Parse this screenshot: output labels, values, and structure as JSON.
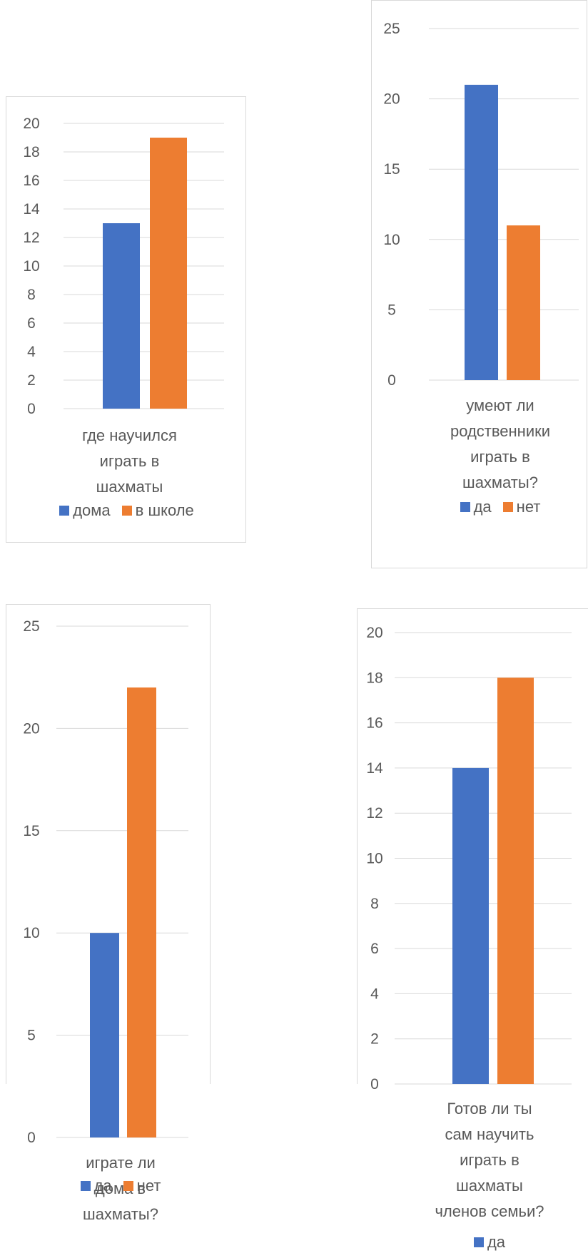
{
  "chart_data": [
    {
      "type": "bar",
      "categories": [
        "где научился играть в шахматы"
      ],
      "series": [
        {
          "name": "дома",
          "values": [
            13
          ],
          "color": "#4472C4"
        },
        {
          "name": "в школе",
          "values": [
            19
          ],
          "color": "#ED7D31"
        }
      ],
      "ylim": [
        0,
        20
      ],
      "yticks": [
        "0",
        "2",
        "4",
        "6",
        "8",
        "10",
        "12",
        "14",
        "16",
        "18",
        "20"
      ],
      "xlabel": "где научился\nиграть в\nшахматы",
      "grid": true,
      "legend": "bottom"
    },
    {
      "type": "bar",
      "categories": [
        "умеют ли родственники играть в шахматы?"
      ],
      "series": [
        {
          "name": "да",
          "values": [
            21
          ],
          "color": "#4472C4"
        },
        {
          "name": "нет",
          "values": [
            11
          ],
          "color": "#ED7D31"
        }
      ],
      "ylim": [
        0,
        25
      ],
      "yticks": [
        "0",
        "5",
        "10",
        "15",
        "20",
        "25"
      ],
      "xlabel": "умеют ли\nродственники\nиграть в\nшахматы?",
      "grid": true,
      "legend": "bottom"
    },
    {
      "type": "bar",
      "categories": [
        "играте ли дома в шахматы?"
      ],
      "series": [
        {
          "name": "да",
          "values": [
            10
          ],
          "color": "#4472C4"
        },
        {
          "name": "нет",
          "values": [
            22
          ],
          "color": "#ED7D31"
        }
      ],
      "ylim": [
        0,
        25
      ],
      "yticks": [
        "0",
        "5",
        "10",
        "15",
        "20",
        "25"
      ],
      "xlabel": "играте ли\nдома в\nшахматы?",
      "grid": true,
      "legend": "bottom"
    },
    {
      "type": "bar",
      "categories": [
        "Готов ли ты сам научить играть в шахматы членов семьи?"
      ],
      "series": [
        {
          "name": "да",
          "values": [
            14
          ],
          "color": "#4472C4"
        },
        {
          "name": "",
          "values": [
            18
          ],
          "color": "#ED7D31"
        }
      ],
      "ylim": [
        0,
        20
      ],
      "yticks": [
        "0",
        "2",
        "4",
        "6",
        "8",
        "10",
        "12",
        "14",
        "16",
        "18",
        "20"
      ],
      "xlabel": "Готов  ли ты\nсам научить\nиграть в\nшахматы\nчленов семьи?",
      "grid": true,
      "legend": "bottom"
    }
  ]
}
